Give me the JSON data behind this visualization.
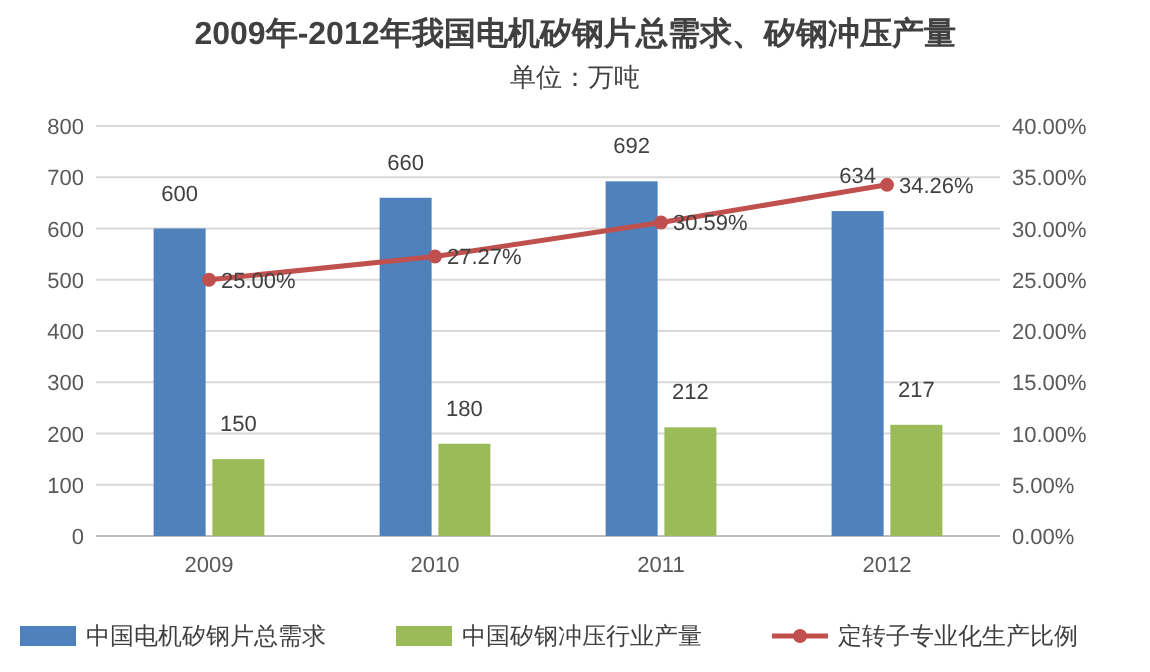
{
  "chart_data": {
    "type": "bar",
    "title": "2009年-2012年我国电机矽钢片总需求、矽钢冲压产量",
    "subtitle": "单位：万吨",
    "categories": [
      "2009",
      "2010",
      "2011",
      "2012"
    ],
    "series": [
      {
        "name": "中国电机矽钢片总需求",
        "color": "#4f81bd",
        "values": [
          600,
          660,
          692,
          634
        ],
        "value_labels": [
          "600",
          "660",
          "692",
          "634"
        ]
      },
      {
        "name": "中国矽钢冲压行业产量",
        "color": "#9bbb59",
        "values": [
          150,
          180,
          212,
          217
        ],
        "value_labels": [
          "150",
          "180",
          "212",
          "217"
        ]
      },
      {
        "name": "定转子专业化生产比例",
        "type": "line",
        "axis": "y2",
        "color": "#c0504d",
        "marker": "circle",
        "values": [
          25.0,
          27.27,
          30.59,
          34.26
        ],
        "value_labels": [
          "25.00%",
          "27.27%",
          "30.59%",
          "34.26%"
        ]
      }
    ],
    "ylim": [
      0,
      800
    ],
    "yticks": [
      0,
      100,
      200,
      300,
      400,
      500,
      600,
      700,
      800
    ],
    "y2lim": [
      0,
      40
    ],
    "y2ticks": [
      {
        "value": 0,
        "label": "0.00%"
      },
      {
        "value": 5,
        "label": "5.00%"
      },
      {
        "value": 10,
        "label": "10.00%"
      },
      {
        "value": 15,
        "label": "15.00%"
      },
      {
        "value": 20,
        "label": "20.00%"
      },
      {
        "value": 25,
        "label": "25.00%"
      },
      {
        "value": 30,
        "label": "30.00%"
      },
      {
        "value": 35,
        "label": "35.00%"
      },
      {
        "value": 40,
        "label": "40.00%"
      }
    ],
    "grid": "y",
    "legend": "bottom"
  }
}
